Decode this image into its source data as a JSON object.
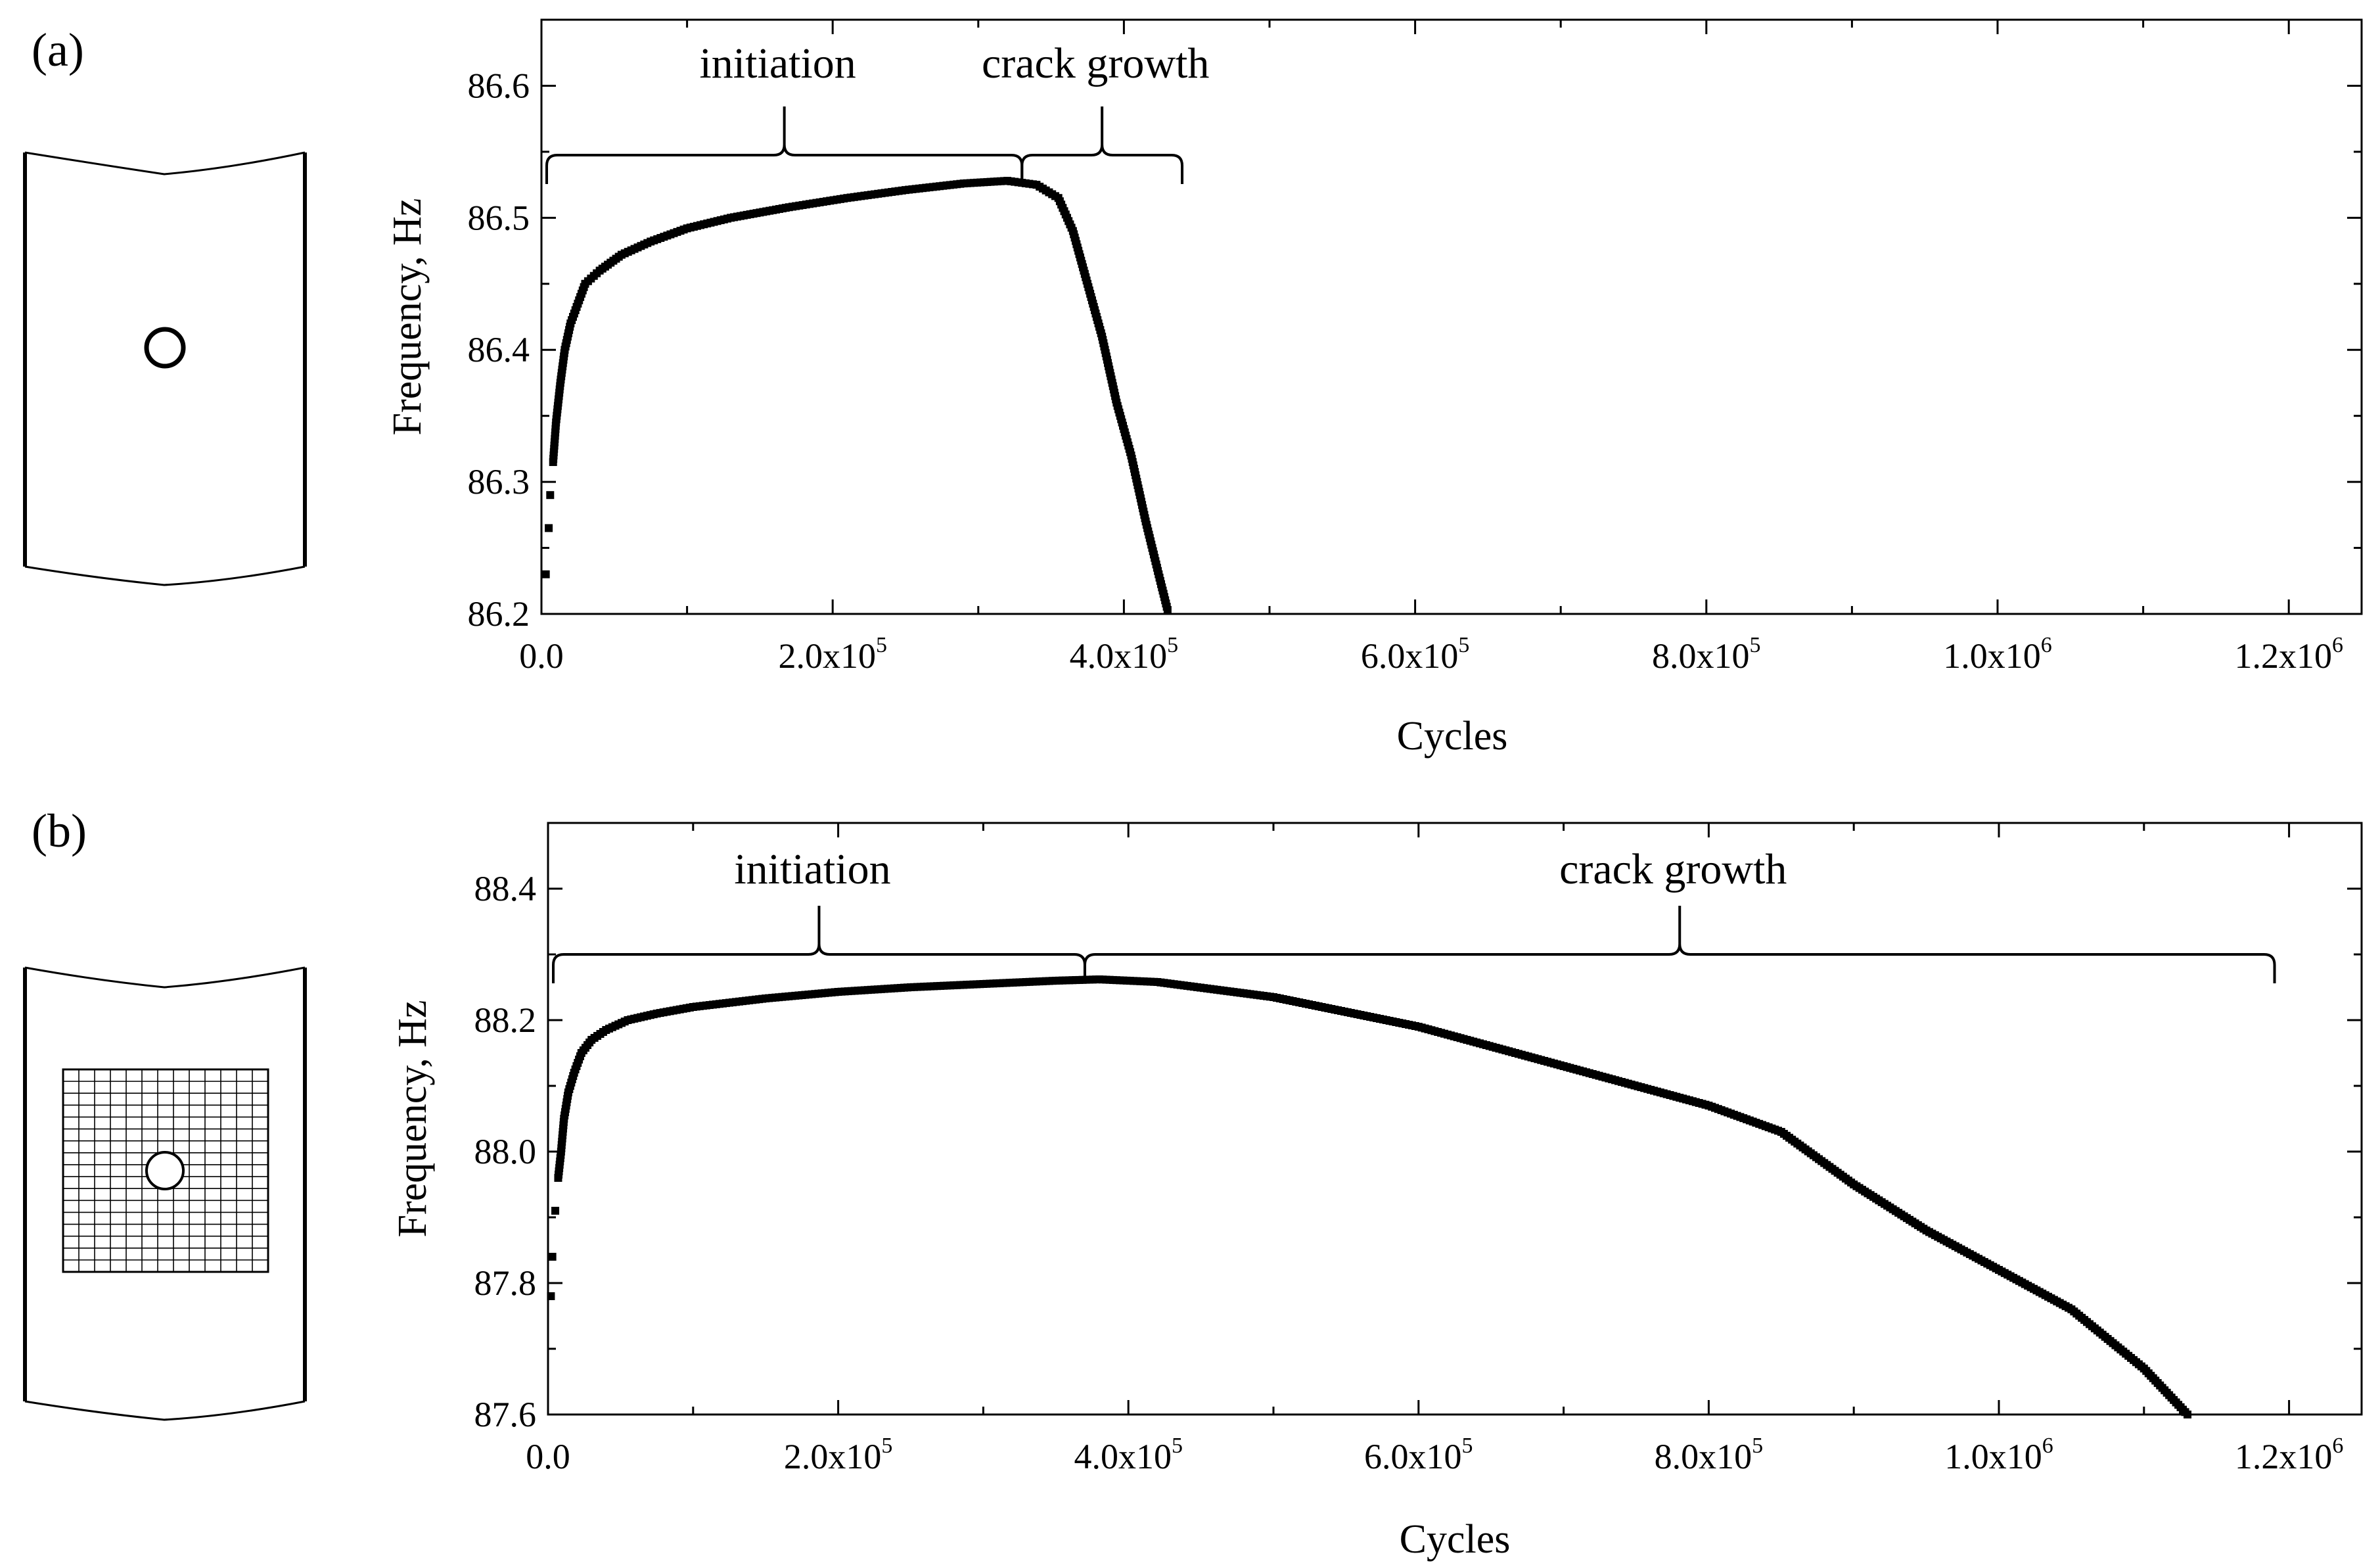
{
  "figure": {
    "panels": [
      {
        "id": "a",
        "label": "(a)",
        "specimen": {
          "feature": "open hole",
          "mesh": false
        },
        "annotations": {
          "initiation": "initiation",
          "crack_growth": "crack growth"
        }
      },
      {
        "id": "b",
        "label": "(b)",
        "specimen": {
          "feature": "open hole",
          "mesh": true
        },
        "annotations": {
          "initiation": "initiation",
          "crack_growth": "crack growth"
        }
      }
    ]
  },
  "chart_data": [
    {
      "type": "scatter",
      "panel": "(a)",
      "title": "",
      "xlabel": "Cycles",
      "ylabel": "Frequency, Hz",
      "xlim": [
        0,
        1250000
      ],
      "ylim": [
        86.2,
        86.65
      ],
      "xticks": [
        {
          "value": 0,
          "mant": "0.0",
          "exp": ""
        },
        {
          "value": 200000,
          "mant": "2.0x10",
          "exp": "5"
        },
        {
          "value": 400000,
          "mant": "4.0x10",
          "exp": "5"
        },
        {
          "value": 600000,
          "mant": "6.0x10",
          "exp": "5"
        },
        {
          "value": 800000,
          "mant": "8.0x10",
          "exp": "5"
        },
        {
          "value": 1000000,
          "mant": "1.0x10",
          "exp": "6"
        },
        {
          "value": 1200000,
          "mant": "1.2x10",
          "exp": "6"
        }
      ],
      "yticks": [
        {
          "value": 86.2,
          "label": "86.2"
        },
        {
          "value": 86.3,
          "label": "86.3"
        },
        {
          "value": 86.4,
          "label": "86.4"
        },
        {
          "value": 86.5,
          "label": "86.5"
        },
        {
          "value": 86.6,
          "label": "86.6"
        }
      ],
      "series": [
        {
          "name": "frequency",
          "x": [
            3000,
            5000,
            6000,
            8000,
            10000,
            13000,
            16000,
            20000,
            25000,
            30000,
            40000,
            55000,
            75000,
            100000,
            130000,
            170000,
            210000,
            250000,
            290000,
            320000,
            340000,
            355000,
            365000,
            375000,
            385000,
            395000,
            405000,
            415000,
            425000,
            430000
          ],
          "y": [
            86.23,
            86.265,
            86.29,
            86.315,
            86.345,
            86.375,
            86.4,
            86.42,
            86.435,
            86.45,
            86.46,
            86.472,
            86.482,
            86.492,
            86.5,
            86.508,
            86.515,
            86.521,
            86.526,
            86.528,
            86.525,
            86.515,
            86.49,
            86.45,
            86.41,
            86.36,
            86.32,
            86.27,
            86.225,
            86.203
          ]
        }
      ],
      "phases": [
        {
          "name": "initiation",
          "from": 0,
          "to": 330000
        },
        {
          "name": "crack growth",
          "from": 330000,
          "to": 440000
        }
      ]
    },
    {
      "type": "scatter",
      "panel": "(b)",
      "title": "",
      "xlabel": "Cycles",
      "ylabel": "Frequency, Hz",
      "xlim": [
        0,
        1250000
      ],
      "ylim": [
        87.6,
        88.5
      ],
      "xticks": [
        {
          "value": 0,
          "mant": "0.0",
          "exp": ""
        },
        {
          "value": 200000,
          "mant": "2.0x10",
          "exp": "5"
        },
        {
          "value": 400000,
          "mant": "4.0x10",
          "exp": "5"
        },
        {
          "value": 600000,
          "mant": "6.0x10",
          "exp": "5"
        },
        {
          "value": 800000,
          "mant": "8.0x10",
          "exp": "5"
        },
        {
          "value": 1000000,
          "mant": "1.0x10",
          "exp": "6"
        },
        {
          "value": 1200000,
          "mant": "1.2x10",
          "exp": "6"
        }
      ],
      "yticks": [
        {
          "value": 87.6,
          "label": "87.6"
        },
        {
          "value": 87.8,
          "label": "87.8"
        },
        {
          "value": 88.0,
          "label": "88.0"
        },
        {
          "value": 88.2,
          "label": "88.2"
        },
        {
          "value": 88.4,
          "label": "88.4"
        }
      ],
      "series": [
        {
          "name": "frequency",
          "x": [
            2000,
            3000,
            5000,
            7000,
            9000,
            11000,
            14000,
            18000,
            23000,
            30000,
            40000,
            55000,
            75000,
            100000,
            150000,
            200000,
            250000,
            300000,
            350000,
            380000,
            420000,
            500000,
            600000,
            700000,
            800000,
            850000,
            900000,
            950000,
            1000000,
            1050000,
            1100000,
            1130000
          ],
          "y": [
            87.78,
            87.84,
            87.91,
            87.96,
            88.0,
            88.05,
            88.09,
            88.12,
            88.15,
            88.17,
            88.185,
            88.2,
            88.21,
            88.22,
            88.233,
            88.243,
            88.25,
            88.255,
            88.26,
            88.262,
            88.258,
            88.235,
            88.19,
            88.13,
            88.07,
            88.03,
            87.95,
            87.88,
            87.82,
            87.76,
            87.67,
            87.6
          ]
        }
      ],
      "phases": [
        {
          "name": "initiation",
          "from": 0,
          "to": 370000
        },
        {
          "name": "crack growth",
          "from": 370000,
          "to": 1190000
        }
      ]
    }
  ]
}
